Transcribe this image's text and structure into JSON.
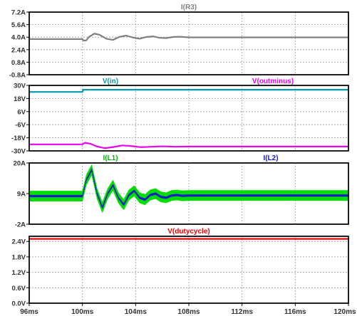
{
  "chart_data": [
    {
      "type": "line",
      "title": "",
      "xlabel": "",
      "ylabel": "",
      "xlim": [
        96,
        120
      ],
      "x_ticks": [
        "96ms",
        "100ms",
        "104ms",
        "108ms",
        "112ms",
        "116ms",
        "120ms"
      ],
      "ylim": [
        -0.8,
        7.2
      ],
      "y_ticks": [
        "7.2A",
        "5.6A",
        "4.0A",
        "2.4A",
        "0.8A",
        "-0.8A"
      ],
      "grid": true,
      "legend": "top-center",
      "series": [
        {
          "name": "I(R3)",
          "color": "#808080",
          "x": [
            96,
            100,
            100.1,
            100.3,
            100.5,
            100.9,
            101.3,
            101.8,
            102.3,
            102.8,
            103.3,
            103.8,
            104.3,
            104.8,
            105.3,
            105.8,
            106.3,
            106.8,
            107.3,
            108,
            120
          ],
          "values": [
            3.75,
            3.75,
            3.55,
            3.6,
            4.05,
            4.45,
            4.3,
            3.8,
            3.65,
            4.05,
            4.2,
            3.95,
            3.8,
            4.02,
            4.1,
            3.92,
            3.88,
            4.02,
            4.05,
            3.97,
            3.97
          ]
        }
      ]
    },
    {
      "type": "line",
      "title": "",
      "xlabel": "",
      "ylabel": "",
      "xlim": [
        96,
        120
      ],
      "ylim": [
        -30,
        30
      ],
      "y_ticks": [
        "30V",
        "18V",
        "6V",
        "-6V",
        "-18V",
        "-30V"
      ],
      "grid": true,
      "legend": "top",
      "series": [
        {
          "name": "V(in)",
          "color": "#0099aa",
          "x": [
            96,
            100,
            100.05,
            120
          ],
          "values": [
            24,
            24,
            26,
            26
          ]
        },
        {
          "name": "V(outminus)",
          "color": "#ee00ee",
          "x": [
            96,
            100,
            100.2,
            100.6,
            101.1,
            101.7,
            102.3,
            103,
            103.7,
            104.4,
            105.2,
            106,
            107,
            108,
            120
          ],
          "values": [
            -24,
            -24,
            -22.5,
            -23.5,
            -26,
            -27.5,
            -26.5,
            -25,
            -25.6,
            -26.6,
            -26.2,
            -25.8,
            -26.2,
            -26,
            -26
          ]
        }
      ]
    },
    {
      "type": "line",
      "title": "",
      "xlabel": "",
      "ylabel": "",
      "xlim": [
        96,
        120
      ],
      "ylim": [
        -2,
        20
      ],
      "y_ticks": [
        "20A",
        "9A",
        "-2A"
      ],
      "grid": true,
      "legend": "top",
      "series": [
        {
          "name": "I(L1)",
          "color": "#00dd00",
          "x": [
            96,
            100,
            100.3,
            100.7,
            101.1,
            101.5,
            101.9,
            102.3,
            102.7,
            103.1,
            103.5,
            103.9,
            104.3,
            104.7,
            105.1,
            105.5,
            105.9,
            106.3,
            106.7,
            107.1,
            107.5,
            108,
            120
          ],
          "values": [
            8.1,
            8.1,
            14,
            17.5,
            9,
            4,
            9,
            12,
            7.5,
            5,
            8.5,
            10,
            7.5,
            6.8,
            8.5,
            9,
            7.8,
            7.5,
            8.3,
            8.5,
            8.2,
            8.3,
            8.3
          ],
          "ripple_amplitude": 1.9
        },
        {
          "name": "I(L2)",
          "color": "#1a1acc",
          "x": [
            96,
            100,
            100.3,
            100.7,
            101.1,
            101.5,
            101.9,
            102.3,
            102.7,
            103.1,
            103.5,
            103.9,
            104.3,
            104.7,
            105.1,
            105.5,
            105.9,
            106.3,
            106.7,
            107.1,
            107.5,
            108,
            120
          ],
          "values": [
            8.1,
            8.1,
            14,
            17.5,
            9,
            4,
            9,
            12,
            7.5,
            5,
            8.5,
            10,
            7.5,
            6.8,
            8.5,
            9,
            7.8,
            7.5,
            8.3,
            8.5,
            8.2,
            8.3,
            8.3
          ],
          "ripple_amplitude": 0.4
        }
      ]
    },
    {
      "type": "line",
      "title": "",
      "xlabel": "",
      "ylabel": "",
      "xlim": [
        96,
        120
      ],
      "ylim": [
        0,
        2.6
      ],
      "y_ticks": [
        "2.4V",
        "1.8V",
        "1.2V",
        "0.6V",
        "0.0V"
      ],
      "grid": true,
      "legend": "top",
      "series": [
        {
          "name": "V(dutycycle)",
          "color": "#ee0000",
          "x": [
            96,
            120
          ],
          "values": [
            2.5,
            2.5
          ]
        }
      ]
    }
  ]
}
